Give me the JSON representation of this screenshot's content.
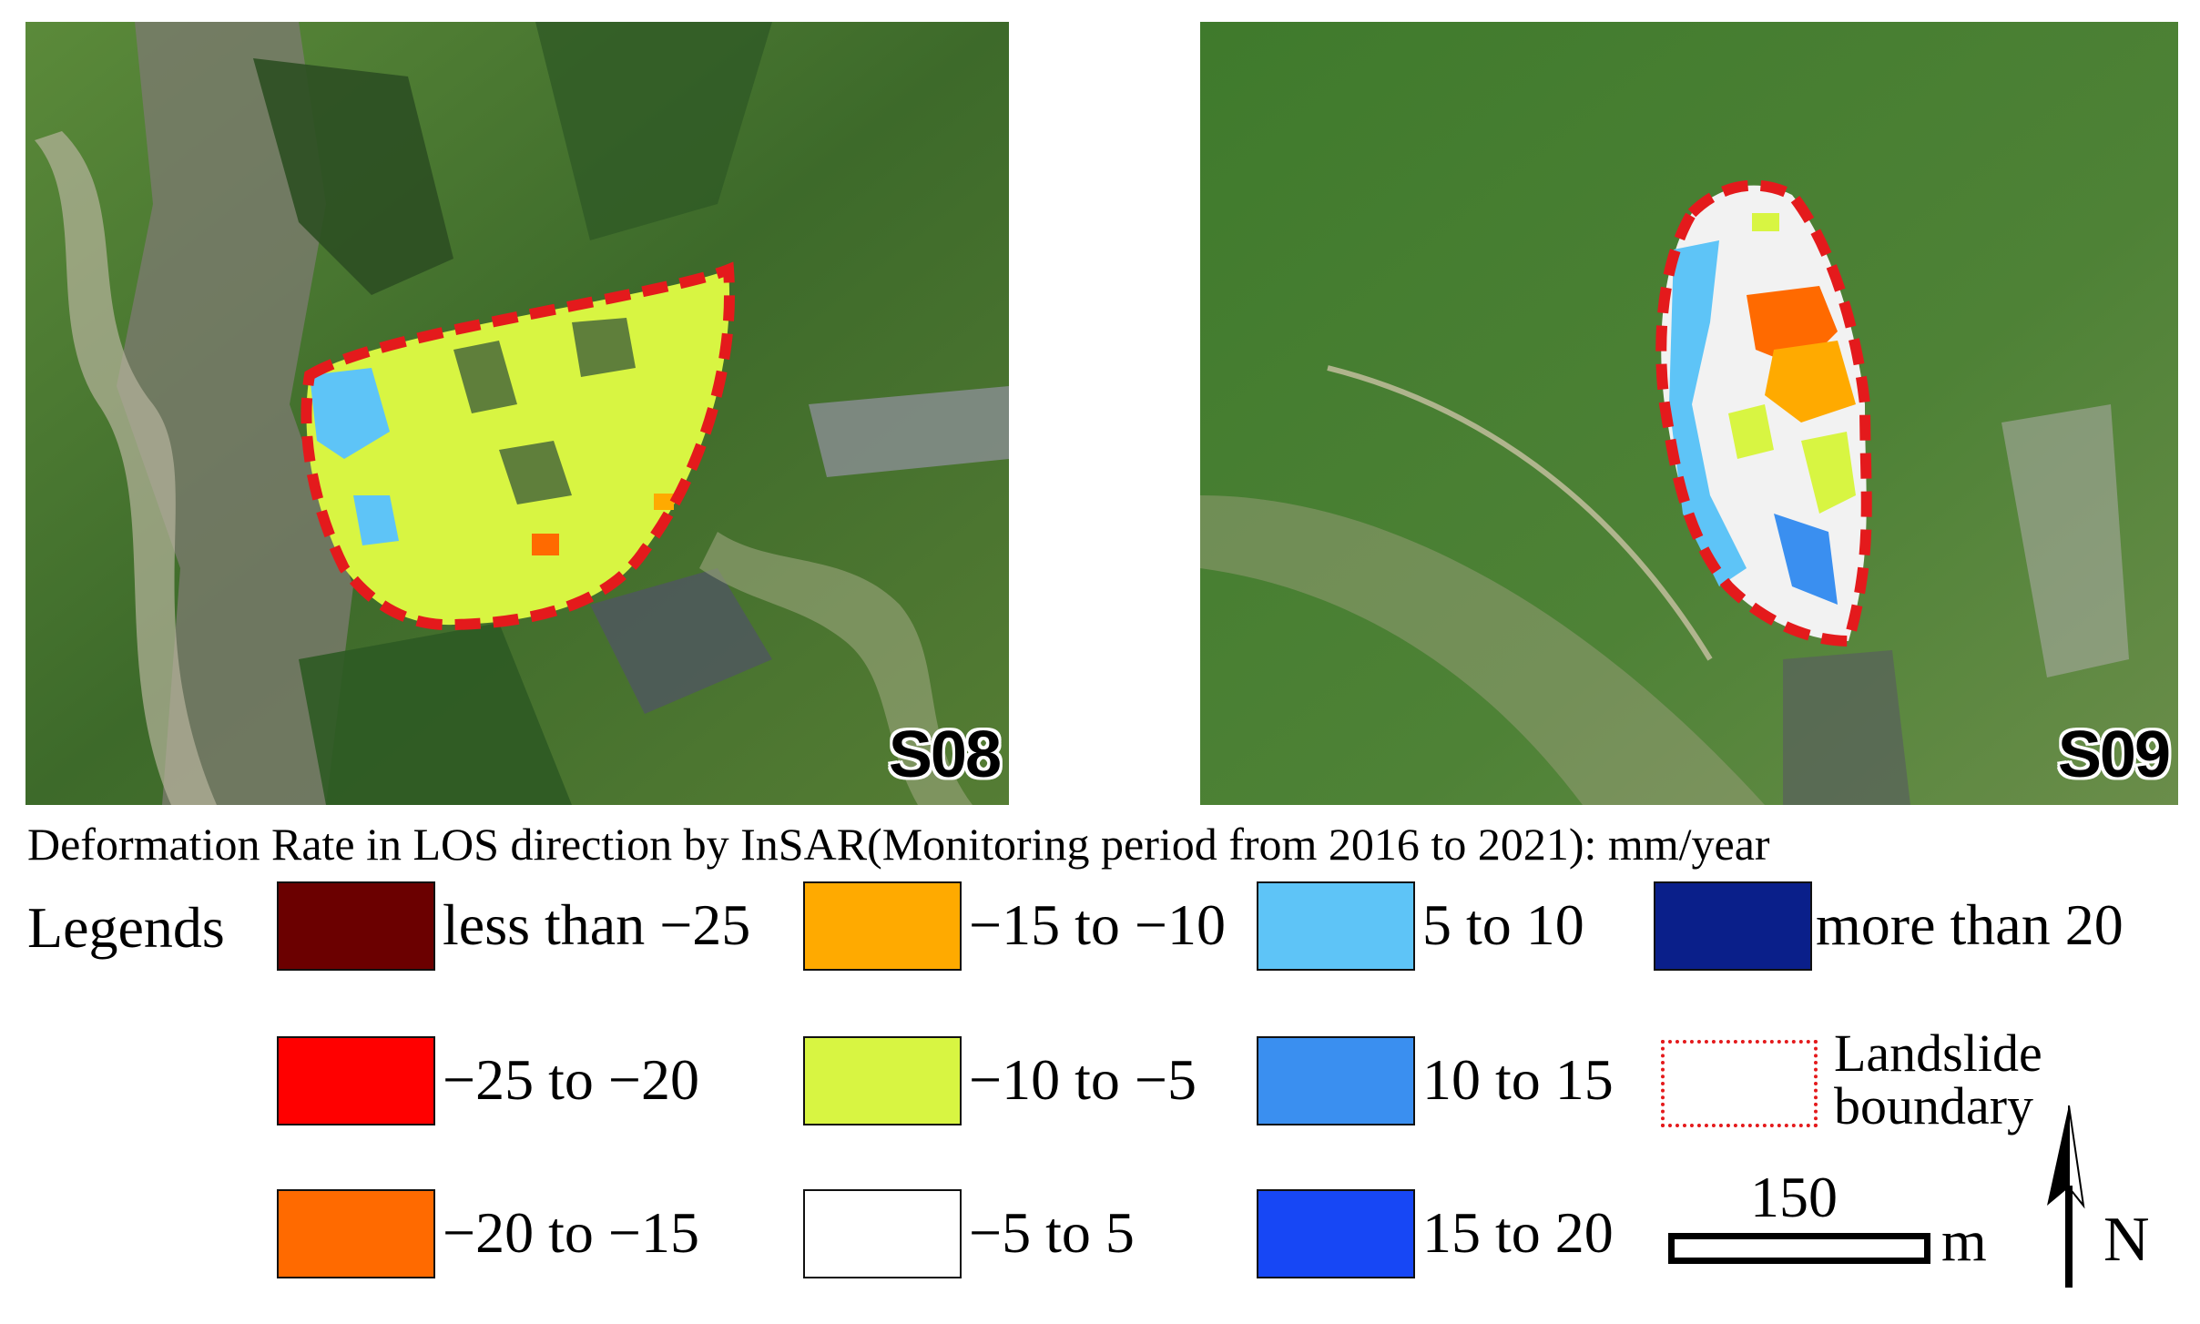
{
  "panels": [
    {
      "id": "s08",
      "label": "S08"
    },
    {
      "id": "s09",
      "label": "S09"
    }
  ],
  "caption": "Deformation Rate in LOS direction by InSAR(Monitoring period from 2016 to 2021): mm/year",
  "legends_title": "Legends",
  "legend_items": [
    {
      "label": "less than −25",
      "color": "#6b0000"
    },
    {
      "label": "−25 to −20",
      "color": "#ff0000"
    },
    {
      "label": "−20 to −15",
      "color": "#ff6a00"
    },
    {
      "label": "−15 to −10",
      "color": "#ffaa00"
    },
    {
      "label": "−10 to −5",
      "color": "#d8f542"
    },
    {
      "label": "−5 to 5",
      "color": "#ffffff"
    },
    {
      "label": "5 to 10",
      "color": "#5ec4f7"
    },
    {
      "label": "10 to 15",
      "color": "#3a8ff0"
    },
    {
      "label": "15 to 20",
      "color": "#1747f5"
    },
    {
      "label": "more than 20",
      "color": "#0a1f8a"
    }
  ],
  "boundary_legend": {
    "label": "Landslide\nboundary",
    "color": "#e41a1c"
  },
  "scale_bar": {
    "value": "150",
    "unit": "m"
  },
  "north_arrow": {
    "label": "N"
  }
}
